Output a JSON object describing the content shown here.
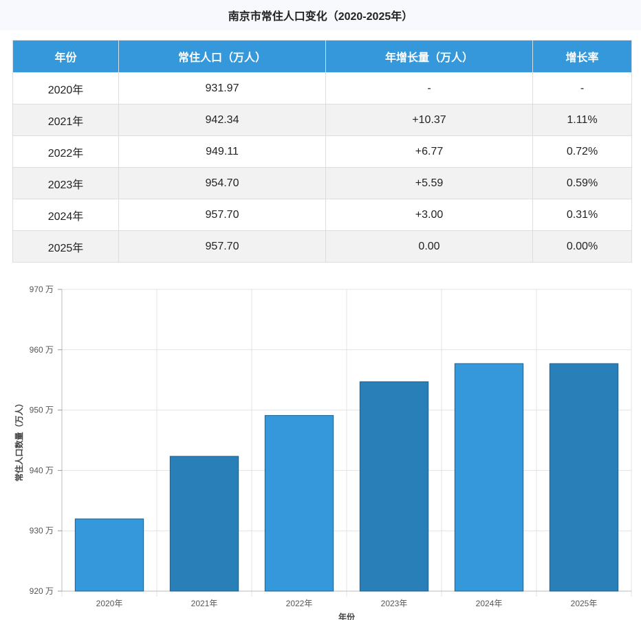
{
  "title": "南京市常住人口变化（2020-2025年）",
  "table": {
    "headers": [
      "年份",
      "常住人口（万人）",
      "年增长量（万人）",
      "增长率"
    ],
    "rows": [
      [
        "2020年",
        "931.97",
        "-",
        "-"
      ],
      [
        "2021年",
        "942.34",
        "+10.37",
        "1.11%"
      ],
      [
        "2022年",
        "949.11",
        "+6.77",
        "0.72%"
      ],
      [
        "2023年",
        "954.70",
        "+5.59",
        "0.59%"
      ],
      [
        "2024年",
        "957.70",
        "+3.00",
        "0.31%"
      ],
      [
        "2025年",
        "957.70",
        "0.00",
        "0.00%"
      ]
    ]
  },
  "chart_data": {
    "type": "bar",
    "categories": [
      "2020年",
      "2021年",
      "2022年",
      "2023年",
      "2024年",
      "2025年"
    ],
    "values": [
      931.97,
      942.34,
      949.11,
      954.7,
      957.7,
      957.7
    ],
    "xlabel": "年份",
    "ylabel": "常住人口数量（万人）",
    "ylim": [
      920,
      970
    ],
    "yticks": [
      920,
      930,
      940,
      950,
      960,
      970
    ],
    "ytick_suffix": " 万",
    "grid": true,
    "colors": [
      "#3498db",
      "#2980b9"
    ]
  }
}
